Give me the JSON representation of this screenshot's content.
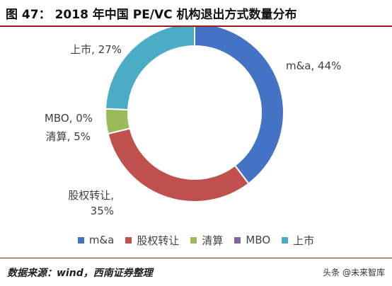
{
  "figure": {
    "label": "图 47：",
    "title": "2018 年中国 PE/VC 机构退出方式数量分布"
  },
  "chart_data": {
    "type": "pie",
    "donut": true,
    "series": [
      {
        "name": "m&a",
        "value": 44,
        "color": "#4472C4",
        "label_text": "m&a, 44%"
      },
      {
        "name": "股权转让",
        "value": 35,
        "color": "#C0504D",
        "label_text": "股权转让,\n35%"
      },
      {
        "name": "清算",
        "value": 5,
        "color": "#9BBB59",
        "label_text": "清算, 5%"
      },
      {
        "name": "MBO",
        "value": 0,
        "color": "#8064A2",
        "label_text": "MBO, 0%"
      },
      {
        "name": "上市",
        "value": 27,
        "color": "#4BACC6",
        "label_text": "上市, 27%"
      }
    ],
    "legend_position": "bottom"
  },
  "source": "数据来源：wind，西南证券整理",
  "watermark": "头条 @未来智库"
}
